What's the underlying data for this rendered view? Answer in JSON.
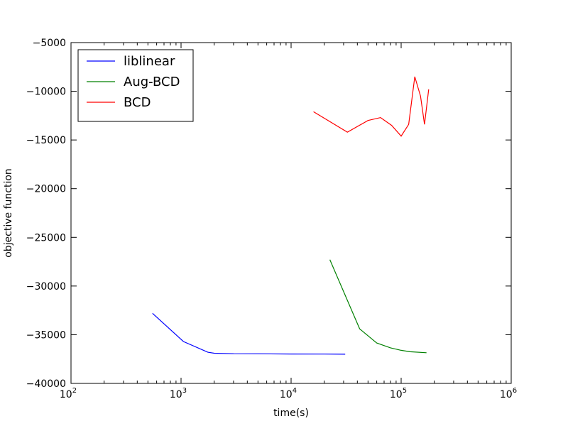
{
  "chart_data": {
    "type": "line",
    "title": "",
    "xlabel": "time(s)",
    "ylabel": "objective function",
    "xscale": "log",
    "xlim": [
      100,
      1000000
    ],
    "ylim": [
      -40000,
      -5000
    ],
    "x_ticks": [
      {
        "value": 100,
        "base": "10",
        "exp": "2"
      },
      {
        "value": 1000,
        "base": "10",
        "exp": "3"
      },
      {
        "value": 10000,
        "base": "10",
        "exp": "4"
      },
      {
        "value": 100000,
        "base": "10",
        "exp": "5"
      },
      {
        "value": 1000000,
        "base": "10",
        "exp": "6"
      }
    ],
    "y_ticks": [
      {
        "value": -40000,
        "label": "−40000"
      },
      {
        "value": -35000,
        "label": "−35000"
      },
      {
        "value": -30000,
        "label": "−30000"
      },
      {
        "value": -25000,
        "label": "−25000"
      },
      {
        "value": -20000,
        "label": "−20000"
      },
      {
        "value": -15000,
        "label": "−15000"
      },
      {
        "value": -10000,
        "label": "−10000"
      },
      {
        "value": -5000,
        "label": "−5000"
      }
    ],
    "grid": false,
    "legend_position": "top-left",
    "series": [
      {
        "name": "liblinear",
        "color": "#0000ff",
        "points": [
          [
            550,
            -32800
          ],
          [
            1050,
            -35700
          ],
          [
            1750,
            -36800
          ],
          [
            2000,
            -36900
          ],
          [
            3000,
            -36950
          ],
          [
            5000,
            -36960
          ],
          [
            10000,
            -36980
          ],
          [
            20000,
            -36990
          ],
          [
            31000,
            -37000
          ]
        ]
      },
      {
        "name": "Aug-BCD",
        "color": "#008000",
        "points": [
          [
            22500,
            -27300
          ],
          [
            42000,
            -34400
          ],
          [
            60000,
            -35850
          ],
          [
            80000,
            -36350
          ],
          [
            100000,
            -36600
          ],
          [
            120000,
            -36750
          ],
          [
            170000,
            -36850
          ]
        ]
      },
      {
        "name": "BCD",
        "color": "#ff0000",
        "points": [
          [
            16000,
            -12100
          ],
          [
            32500,
            -14200
          ],
          [
            50000,
            -13000
          ],
          [
            65000,
            -12700
          ],
          [
            82000,
            -13500
          ],
          [
            100000,
            -14600
          ],
          [
            117000,
            -13400
          ],
          [
            133000,
            -8500
          ],
          [
            150000,
            -10500
          ],
          [
            163000,
            -13400
          ],
          [
            178000,
            -9800
          ]
        ]
      }
    ]
  }
}
